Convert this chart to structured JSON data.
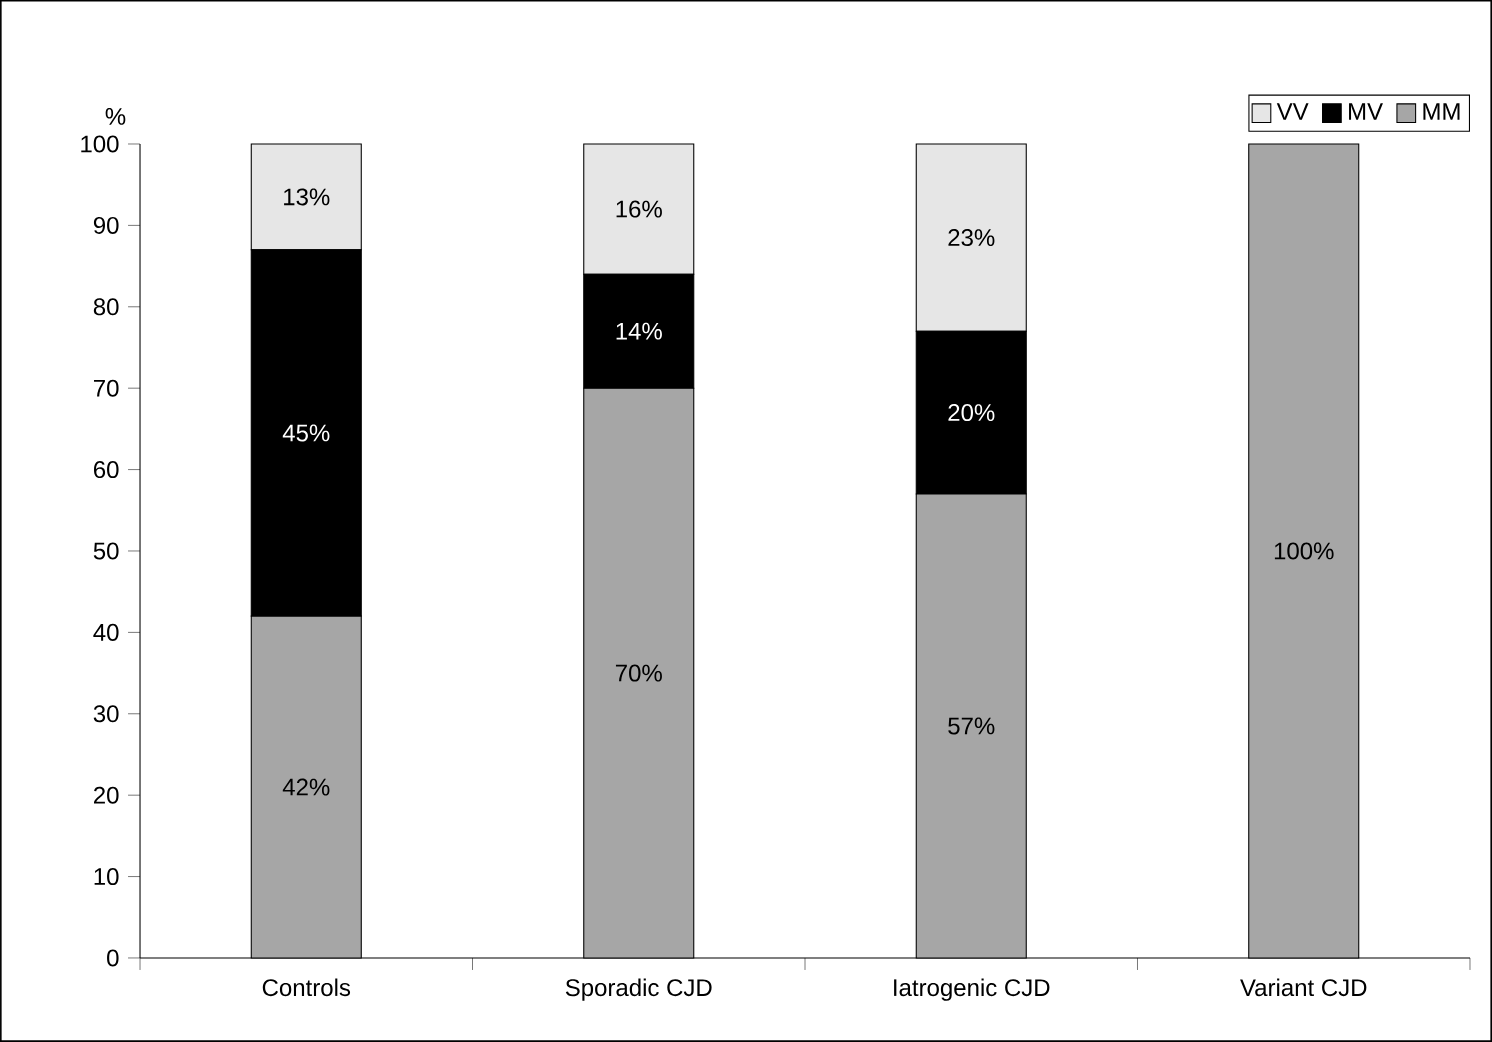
{
  "chart_data": {
    "type": "bar",
    "stacked": true,
    "ylabel": "%",
    "categories": [
      "Controls",
      "Sporadic CJD",
      "Iatrogenic CJD",
      "Variant CJD"
    ],
    "series": [
      {
        "name": "MM",
        "color": "#a6a6a6",
        "values": [
          42,
          70,
          57,
          100
        ],
        "value_labels": [
          "42%",
          "70%",
          "57%",
          "100%"
        ]
      },
      {
        "name": "MV",
        "color": "#000000",
        "values": [
          45,
          14,
          20,
          0
        ],
        "value_labels": [
          "45%",
          "14%",
          "20%",
          null
        ]
      },
      {
        "name": "VV",
        "color": "#e6e6e6",
        "values": [
          13,
          16,
          23,
          0
        ],
        "value_labels": [
          "13%",
          "16%",
          "23%",
          null
        ]
      }
    ],
    "ylim": [
      0,
      100
    ],
    "yticks": [
      0,
      10,
      20,
      30,
      40,
      50,
      60,
      70,
      80,
      90,
      100
    ],
    "legend": "top right",
    "grid": false
  }
}
